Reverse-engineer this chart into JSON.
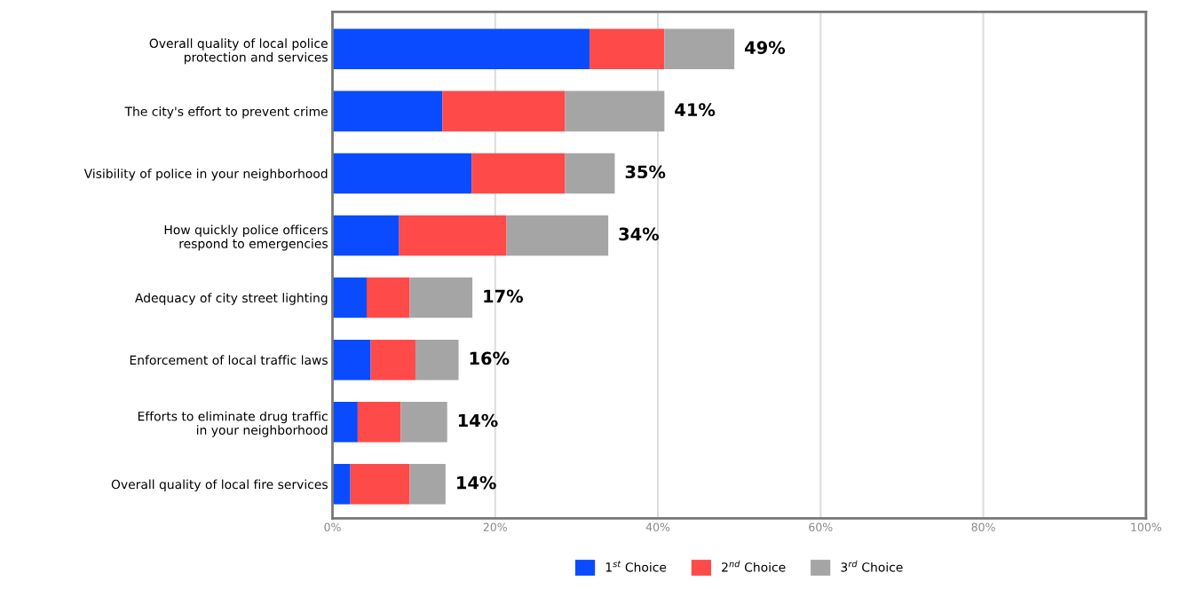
{
  "chart_data": {
    "type": "bar",
    "orientation": "horizontal",
    "stacked": true,
    "categories": [
      "Overall quality of local police\nprotection and services",
      "The city's effort to prevent crime",
      "Visibility of police in your neighborhood",
      "How quickly police officers\nrespond to emergencies",
      "Adequacy of city street lighting",
      "Enforcement of local traffic laws",
      "Efforts to eliminate drug traffic\nin your neighborhood",
      "Overall quality of local fire services"
    ],
    "series": [
      {
        "name": "1$^{st}$ Choice",
        "color": "#0a4bff",
        "values": [
          31.6,
          13.5,
          17.1,
          8.2,
          4.2,
          4.7,
          3.1,
          2.2
        ]
      },
      {
        "name": "2$^{nd}$ Choice",
        "color": "#ff4a4a",
        "values": [
          9.2,
          15.1,
          11.5,
          13.2,
          5.3,
          5.5,
          5.3,
          7.3
        ]
      },
      {
        "name": "3$^{rd}$ Choice",
        "color": "#a5a5a5",
        "values": [
          8.6,
          12.2,
          6.1,
          12.5,
          7.7,
          5.3,
          5.7,
          4.4
        ]
      }
    ],
    "totals": [
      "49%",
      "41%",
      "35%",
      "34%",
      "17%",
      "16%",
      "14%",
      "14%"
    ],
    "xlim": [
      0,
      100
    ],
    "xticks": [
      {
        "value": 0,
        "label": "0%"
      },
      {
        "value": 20,
        "label": "20%"
      },
      {
        "value": 40,
        "label": "40%"
      },
      {
        "value": 60,
        "label": "60%"
      },
      {
        "value": 80,
        "label": "80%"
      },
      {
        "value": 100,
        "label": "100%"
      }
    ],
    "grid": "x",
    "legend": "bottom"
  }
}
